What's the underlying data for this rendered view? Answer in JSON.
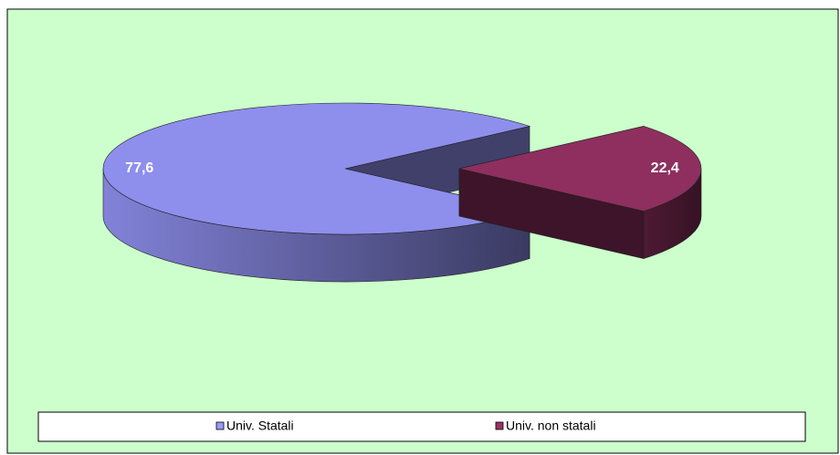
{
  "chart_data": {
    "type": "pie",
    "categories": [
      "Univ. Statali",
      "Univ. non statali"
    ],
    "values": [
      77.6,
      22.4
    ],
    "value_labels": [
      "77,6",
      "22,4"
    ],
    "colors": [
      "#9999ff",
      "#993366"
    ],
    "legend": "bottom"
  }
}
